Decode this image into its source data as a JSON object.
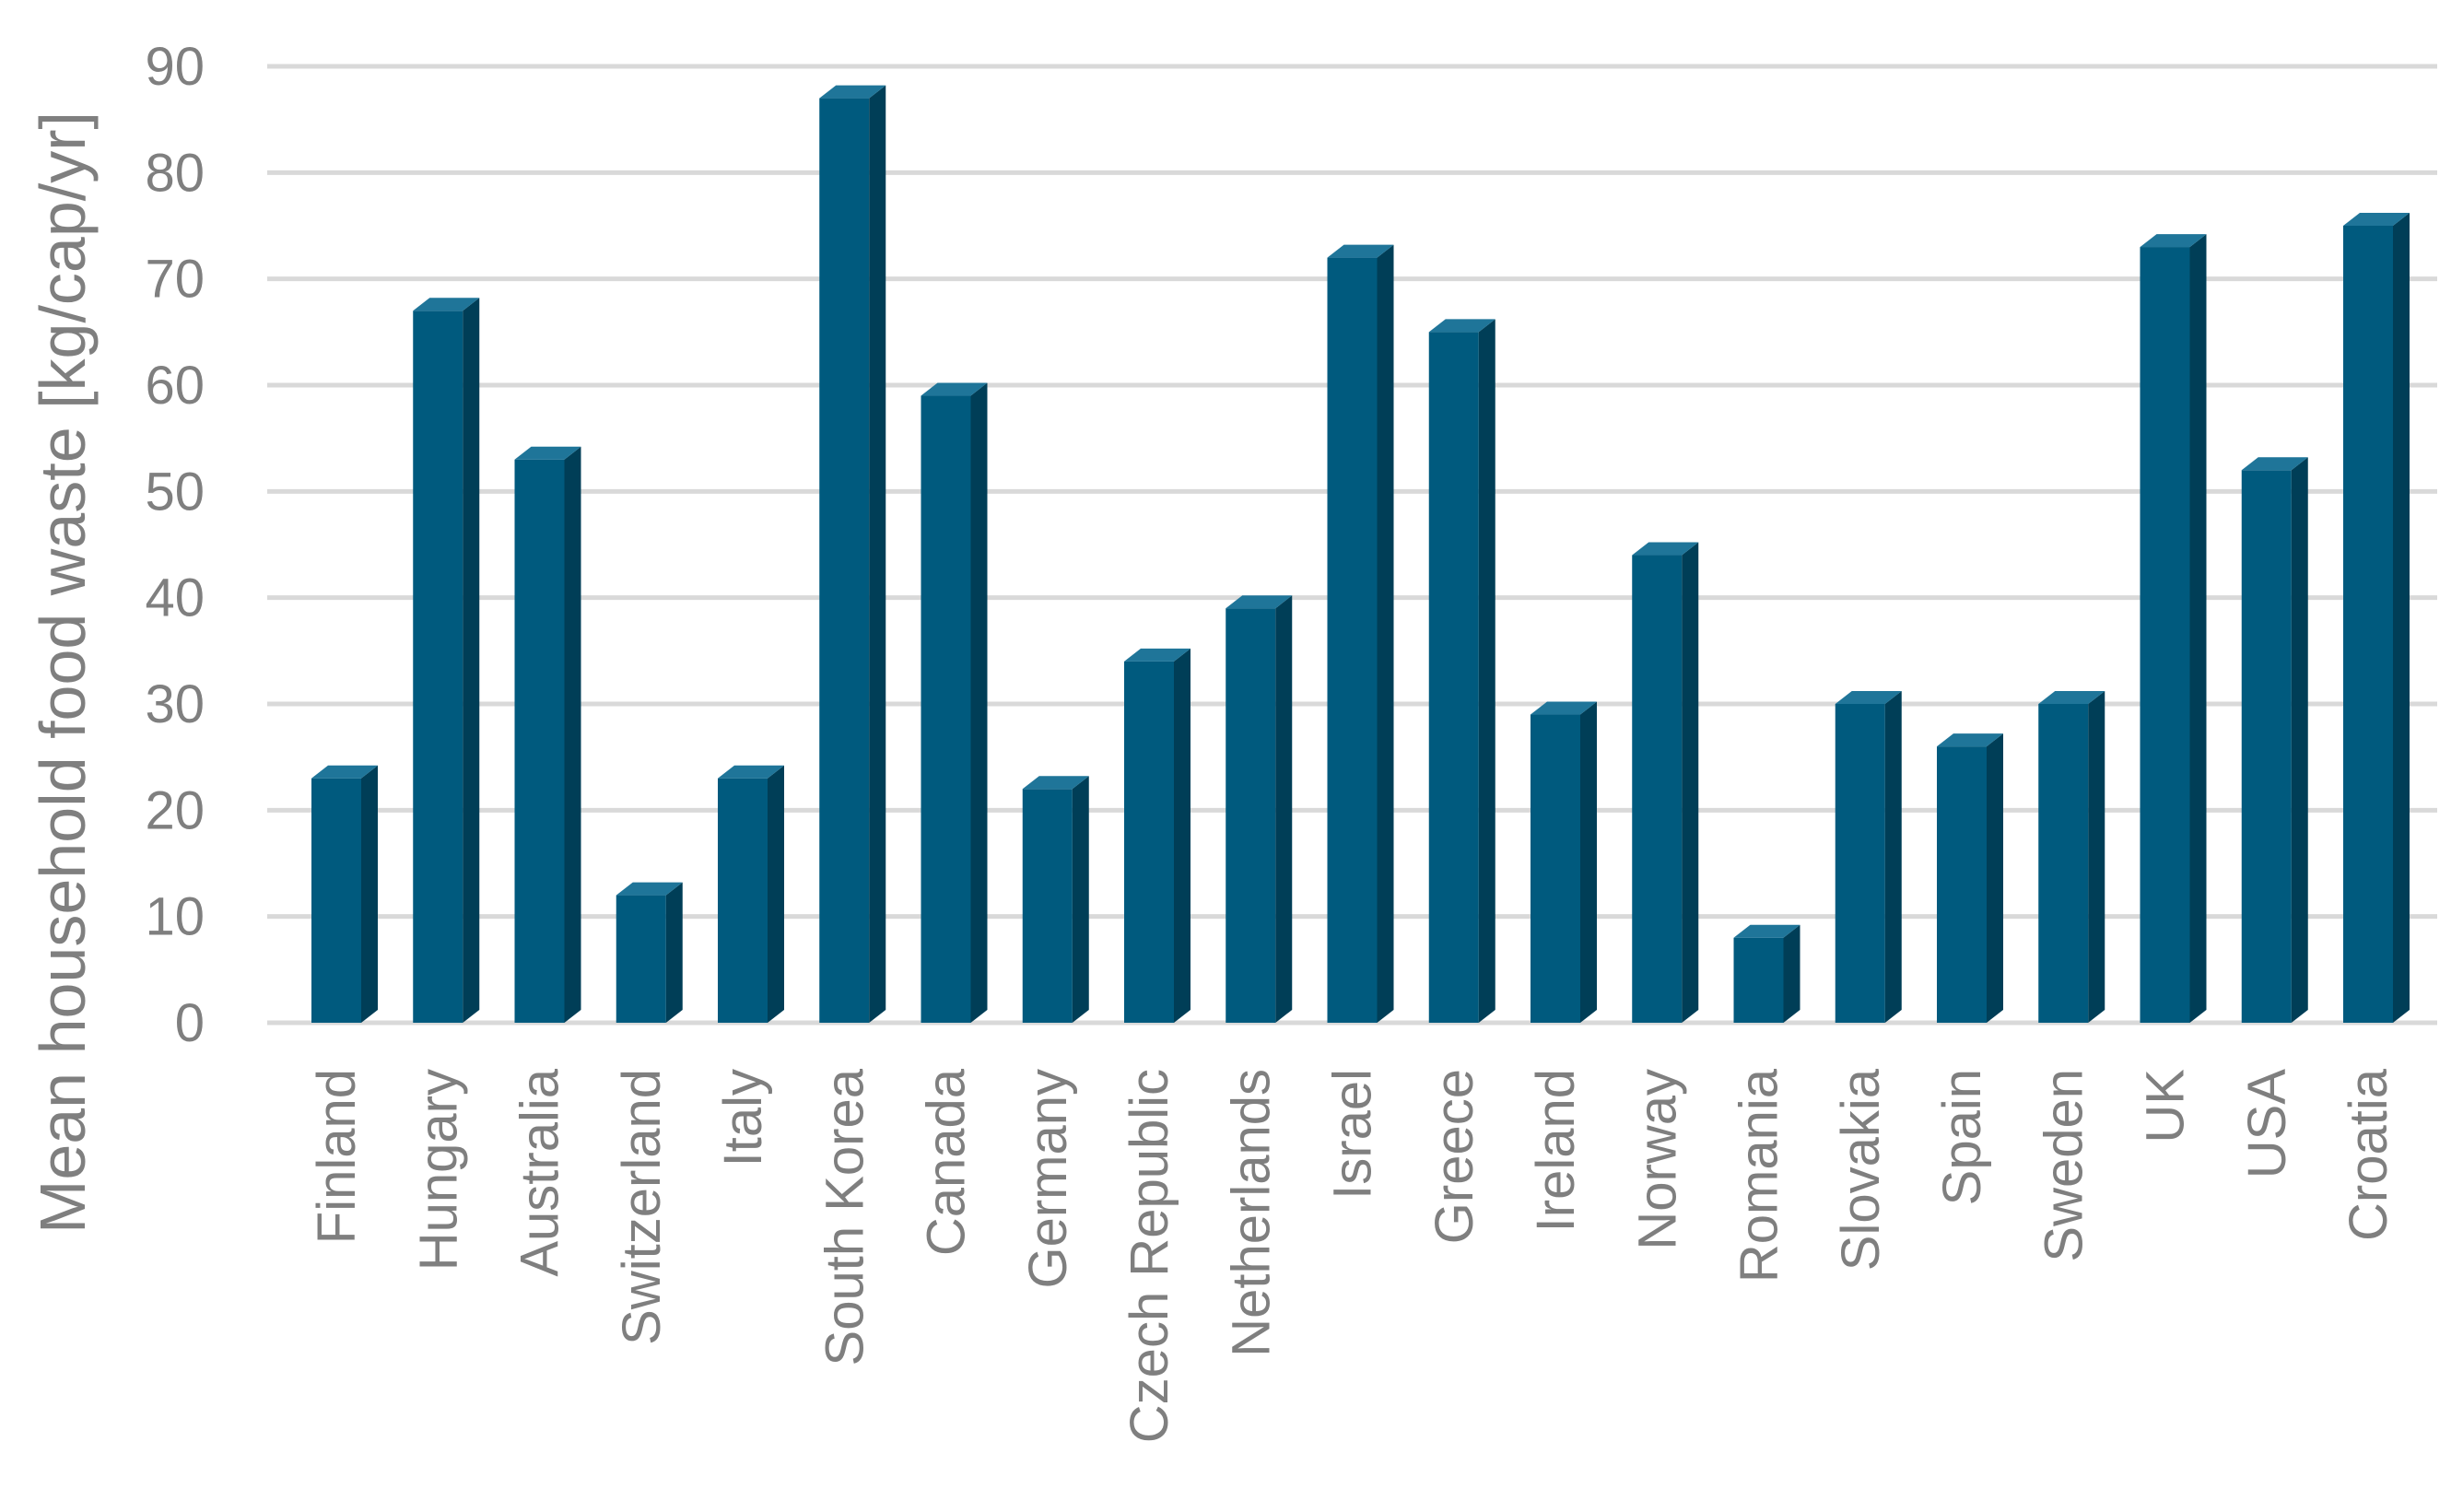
{
  "chart_data": {
    "type": "bar",
    "title": "",
    "xlabel": "",
    "ylabel": "Mean household food waste [kg/cap/yr]",
    "ylim": [
      0,
      90
    ],
    "yticks": [
      0,
      10,
      20,
      30,
      40,
      50,
      60,
      70,
      80,
      90
    ],
    "grid": true,
    "legend": "none",
    "categories": [
      "Finland",
      "Hungary",
      "Australia",
      "Switzerland",
      "Italy",
      "South Korea",
      "Canada",
      "Germany",
      "Czech Republic",
      "Netherlands",
      "Israel",
      "Greece",
      "Ireland",
      "Norway",
      "Romania",
      "Slovakia",
      "Spain",
      "Sweden",
      "UK",
      "USA",
      "Croatia"
    ],
    "values": [
      23,
      67,
      53,
      12,
      23,
      87,
      59,
      22,
      34,
      39,
      72,
      65,
      29,
      44,
      8,
      30,
      26,
      30,
      73,
      52,
      75
    ],
    "colors": {
      "bar_front": "#005a7e",
      "bar_side": "#003e57",
      "bar_top": "#1f7599",
      "gridline": "#d9d9d9",
      "text": "#7f7f7f"
    }
  }
}
